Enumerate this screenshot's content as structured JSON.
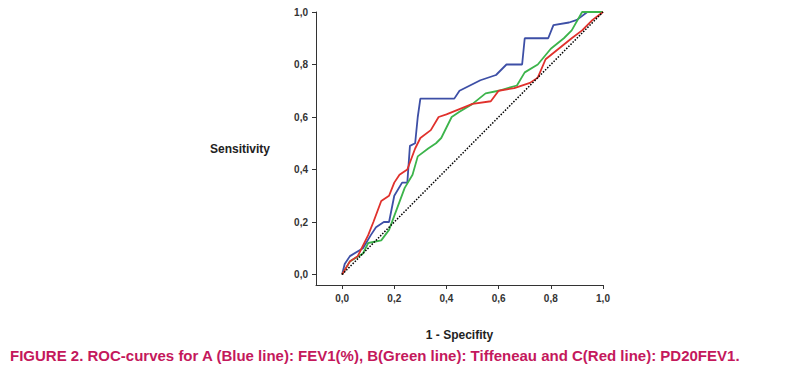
{
  "chart_data": {
    "type": "line",
    "title": "FIGURE 2. ROC-curves for A (Blue line): FEV1(%), B(Green line): Tiffeneau and C(Red line): PD20FEV1.",
    "x_label": "1 - Specifity",
    "y_label": "Sensitivity",
    "xlim": [
      -0.1,
      1.0
    ],
    "ylim": [
      -0.04,
      1.0
    ],
    "xticks": [
      {
        "value": 0,
        "label": "0,0"
      },
      {
        "value": 0.2,
        "label": "0,2"
      },
      {
        "value": 0.4,
        "label": "0,4"
      },
      {
        "value": 0.6,
        "label": "0,6"
      },
      {
        "value": 0.8,
        "label": "0,8"
      },
      {
        "value": 1.0,
        "label": "1,0"
      }
    ],
    "yticks": [
      {
        "value": 0,
        "label": "0,0"
      },
      {
        "value": 0.2,
        "label": "0,2"
      },
      {
        "value": 0.4,
        "label": "0,4"
      },
      {
        "value": 0.6,
        "label": "0,6"
      },
      {
        "value": 0.8,
        "label": "0,8"
      },
      {
        "value": 1.0,
        "label": "1,0"
      }
    ],
    "grid": false,
    "series": [
      {
        "color": "#3d4fa6",
        "line_style": "solid",
        "x": [
          0,
          0.01,
          0.03,
          0.08,
          0.11,
          0.13,
          0.16,
          0.18,
          0.2,
          0.23,
          0.25,
          0.26,
          0.28,
          0.29,
          0.3,
          0.43,
          0.45,
          0.49,
          0.53,
          0.59,
          0.63,
          0.69,
          0.7,
          0.79,
          0.81,
          0.87,
          0.9,
          0.94,
          1
        ],
        "values": [
          0,
          0.04,
          0.07,
          0.1,
          0.15,
          0.18,
          0.2,
          0.2,
          0.3,
          0.35,
          0.35,
          0.49,
          0.5,
          0.6,
          0.67,
          0.67,
          0.7,
          0.72,
          0.74,
          0.76,
          0.8,
          0.8,
          0.9,
          0.9,
          0.95,
          0.96,
          0.97,
          1.0,
          1
        ]
      },
      {
        "color": "#3cb44b",
        "line_style": "solid",
        "x": [
          0,
          0.03,
          0.08,
          0.1,
          0.15,
          0.18,
          0.21,
          0.24,
          0.27,
          0.29,
          0.33,
          0.36,
          0.38,
          0.4,
          0.42,
          0.45,
          0.5,
          0.55,
          0.6,
          0.67,
          0.7,
          0.75,
          0.8,
          0.85,
          0.88,
          0.92,
          1
        ],
        "values": [
          0,
          0.05,
          0.08,
          0.12,
          0.13,
          0.17,
          0.25,
          0.33,
          0.38,
          0.45,
          0.48,
          0.5,
          0.52,
          0.56,
          0.6,
          0.62,
          0.65,
          0.69,
          0.7,
          0.72,
          0.77,
          0.8,
          0.86,
          0.9,
          0.93,
          1.0,
          1
        ]
      },
      {
        "color": "#e0312c",
        "line_style": "solid",
        "x": [
          0,
          0.03,
          0.06,
          0.1,
          0.12,
          0.15,
          0.18,
          0.2,
          0.22,
          0.25,
          0.28,
          0.3,
          0.34,
          0.37,
          0.4,
          0.45,
          0.5,
          0.57,
          0.6,
          0.66,
          0.72,
          0.75,
          0.78,
          0.83,
          0.88,
          0.92,
          0.96,
          1
        ],
        "values": [
          0,
          0.05,
          0.07,
          0.15,
          0.2,
          0.28,
          0.3,
          0.35,
          0.38,
          0.4,
          0.48,
          0.52,
          0.55,
          0.6,
          0.61,
          0.63,
          0.65,
          0.66,
          0.7,
          0.71,
          0.73,
          0.75,
          0.82,
          0.86,
          0.9,
          0.93,
          0.97,
          1
        ]
      },
      {
        "color": "#000000",
        "line_style": "dotted",
        "x": [
          0,
          1
        ],
        "values": [
          0,
          1
        ]
      }
    ]
  }
}
